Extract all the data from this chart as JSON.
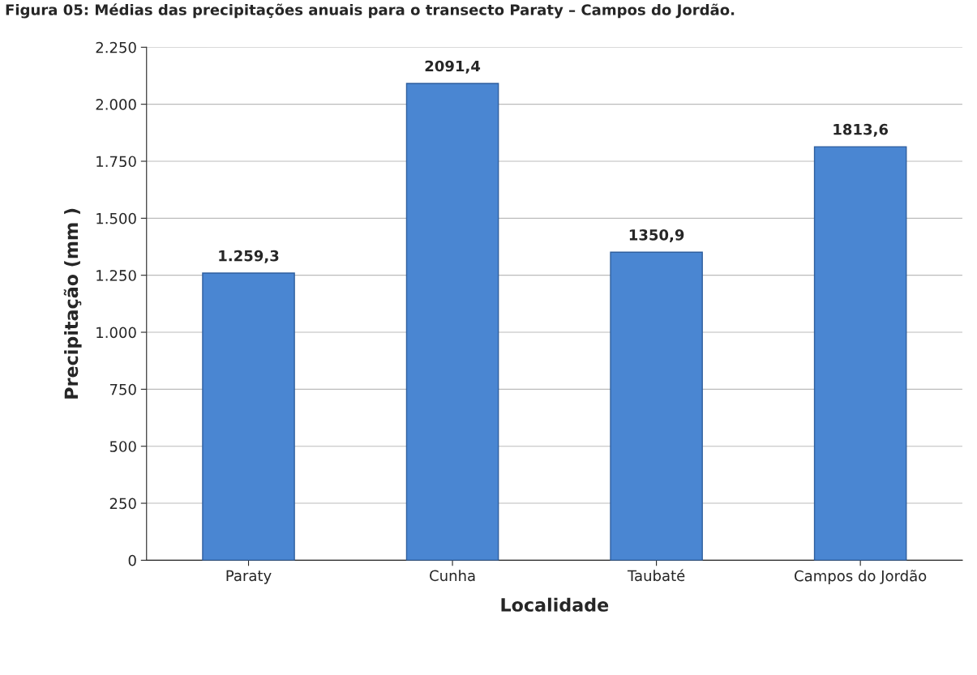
{
  "chart_data": {
    "type": "bar",
    "title": "Figura 05: Médias das precipitações anuais para o transecto Paraty – Campos do Jordão.",
    "xlabel": "Localidade",
    "ylabel": "Precipitação (mm )",
    "categories": [
      "Paraty",
      "Cunha",
      "Taubaté",
      "Campos do Jordão"
    ],
    "values": [
      1259.3,
      2091.4,
      1350.9,
      1813.6
    ],
    "value_labels": [
      "1.259,3",
      "2091,4",
      "1350,9",
      "1813,6"
    ],
    "color": "#4a86d2",
    "ylim": [
      0,
      2250
    ],
    "yticks": [
      0,
      250,
      500,
      750,
      {
        "value": 1000,
        "label": "1.000"
      },
      {
        "value": 1250,
        "label": "1.250"
      },
      {
        "value": 1500,
        "label": "1.500"
      },
      {
        "value": 1750,
        "label": "1.750"
      },
      {
        "value": 2000,
        "label": "2.000"
      },
      {
        "value": 2250,
        "label": "2.250"
      }
    ],
    "grid": "y"
  }
}
